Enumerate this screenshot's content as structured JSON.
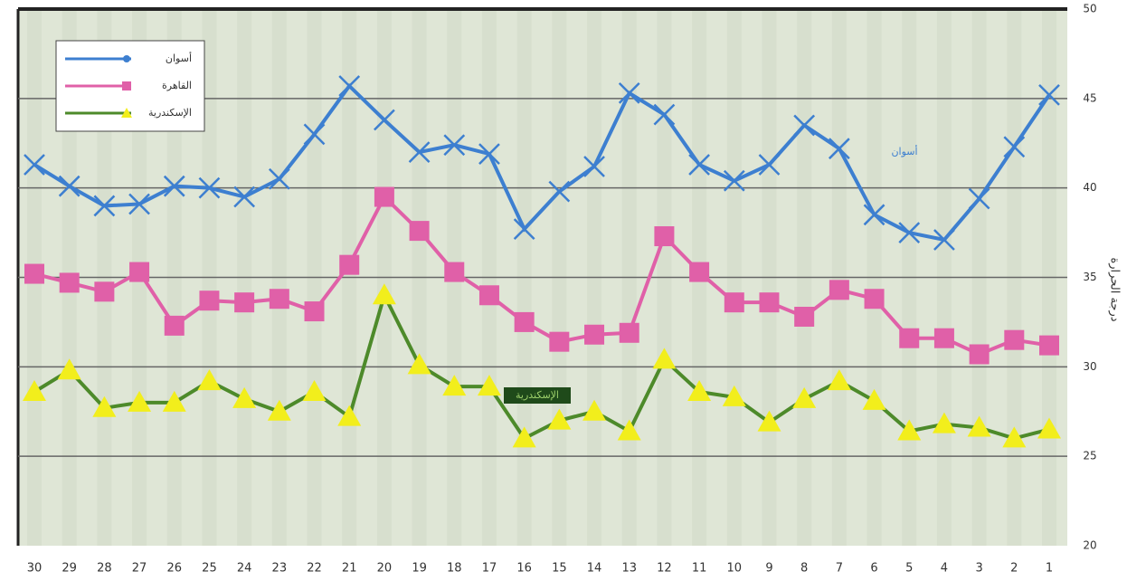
{
  "chart_data": {
    "type": "line",
    "y_label": "درجة الحرارة",
    "categories": [
      "30",
      "29",
      "28",
      "27",
      "26",
      "25",
      "24",
      "23",
      "22",
      "21",
      "20",
      "19",
      "18",
      "17",
      "16",
      "15",
      "14",
      "13",
      "12",
      "11",
      "10",
      "9",
      "8",
      "7",
      "6",
      "5",
      "4",
      "3",
      "2",
      "1"
    ],
    "series": [
      {
        "name": "أسوان",
        "color": "#3d7fd0",
        "marker": "x",
        "values": [
          41.3,
          40.1,
          39.0,
          39.1,
          40.1,
          40.0,
          39.5,
          40.5,
          43.0,
          45.7,
          43.8,
          42.0,
          42.4,
          41.9,
          37.7,
          39.8,
          41.2,
          45.3,
          44.1,
          41.3,
          40.4,
          41.3,
          43.5,
          42.2,
          38.5,
          37.5,
          37.1,
          39.4,
          42.3,
          45.2
        ]
      },
      {
        "name": "القاهرة",
        "color": "#e060a8",
        "marker": "square",
        "values": [
          35.2,
          34.7,
          34.2,
          35.3,
          32.3,
          33.7,
          33.6,
          33.8,
          33.1,
          35.7,
          39.5,
          37.6,
          35.3,
          34.0,
          32.5,
          31.4,
          31.8,
          31.9,
          37.3,
          35.3,
          33.6,
          33.6,
          32.8,
          34.3,
          33.8,
          31.6,
          31.6,
          30.7,
          31.5,
          31.2
        ]
      },
      {
        "name": "الإسكندرية",
        "color": "#4d8a2a",
        "marker": "triangle",
        "values": [
          28.6,
          29.8,
          27.7,
          28.0,
          28.0,
          29.2,
          28.2,
          27.5,
          28.6,
          27.2,
          34.0,
          30.1,
          28.9,
          28.9,
          26.0,
          27.0,
          27.5,
          26.4,
          30.4,
          28.6,
          28.3,
          26.9,
          28.2,
          29.2,
          28.1,
          26.4,
          26.8,
          26.6,
          26.0,
          26.5
        ]
      }
    ],
    "annotations": [
      "أسوان",
      "الإسكندرية"
    ],
    "ylim": [
      20,
      50
    ],
    "yticks": [
      20,
      25,
      30,
      35,
      40,
      45,
      50
    ],
    "grid": true,
    "legend": "upper left"
  }
}
